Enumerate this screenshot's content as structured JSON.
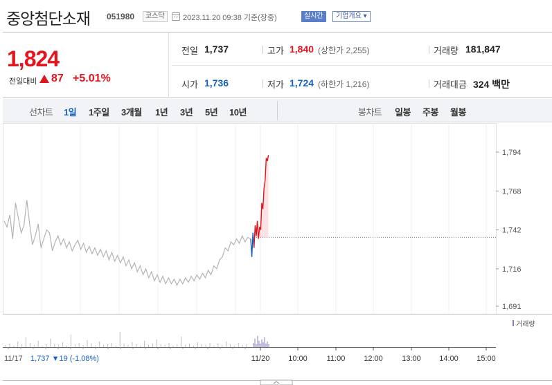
{
  "header": {
    "stock_name": "중앙첨단소재",
    "stock_code": "051980",
    "market": "코스닥",
    "timestamp": "2023.11.20 09:38 기준(장중)",
    "realtime_btn": "실시간",
    "corp_btn": "기업개요 ▾"
  },
  "quote": {
    "price": "1,824",
    "change_label": "전일대비",
    "change_value": "87",
    "change_pct": "+5.01%",
    "prev_close_label": "전일",
    "prev_close": "1,737",
    "high_label": "고가",
    "high": "1,840",
    "upper_limit": "(상한가 2,255)",
    "volume_label": "거래량",
    "volume": "181,847",
    "open_label": "시가",
    "open": "1,736",
    "low_label": "저가",
    "low": "1,724",
    "lower_limit": "(하한가 1,216)",
    "amount_label": "거래대금",
    "amount": "324 백만"
  },
  "period_bar": {
    "line_label": "선차트",
    "line_periods": [
      "1일",
      "1주일",
      "3개월",
      "1년",
      "3년",
      "5년",
      "10년"
    ],
    "active": "1일",
    "candle_label": "봉차트",
    "candle_periods": [
      "일봉",
      "주봉",
      "월봉"
    ]
  },
  "chart": {
    "y_ticks": [
      "1,794",
      "1,768",
      "1,742",
      "1,716",
      "1,691"
    ],
    "y_tick_values": [
      1794,
      1768,
      1742,
      1716,
      1691
    ],
    "volume_legend": "거래량",
    "prev_day_label": "11/17",
    "prev_day_summary": "1,737 ▼19 (-1.08%)",
    "x_ticks": [
      "11/20",
      "10:00",
      "11:00",
      "12:00",
      "13:00",
      "14:00",
      "15:00"
    ],
    "prev_close": 1737
  },
  "colors": {
    "up": "#e3141c",
    "down": "#1560c4",
    "prev_line": "#b3b3b3"
  }
}
